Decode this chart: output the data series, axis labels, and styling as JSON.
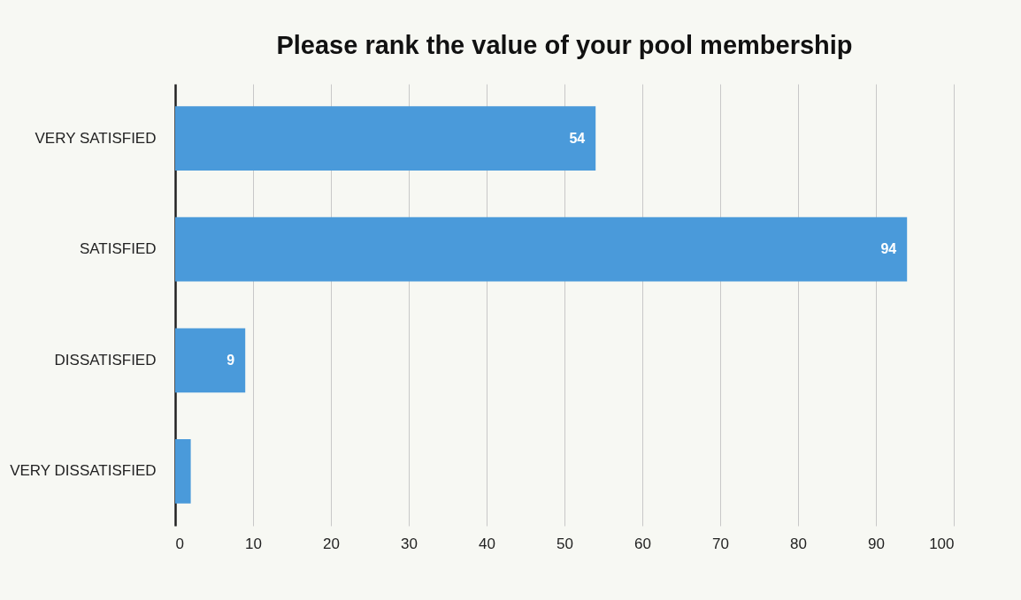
{
  "chart_data": {
    "type": "bar",
    "orientation": "horizontal",
    "title": "Please rank the value of your pool membership",
    "categories": [
      "VERY SATISFIED",
      "SATISFIED",
      "DISSATISFIED",
      "VERY DISSATISFIED"
    ],
    "values": [
      54,
      94,
      9,
      2
    ],
    "value_labels": [
      "54",
      "94",
      "9",
      null
    ],
    "color": "#4a9ada",
    "xlim": [
      0,
      100
    ],
    "xticks": [
      0,
      10,
      20,
      30,
      40,
      50,
      60,
      70,
      80,
      90,
      100
    ],
    "grid": "x"
  }
}
